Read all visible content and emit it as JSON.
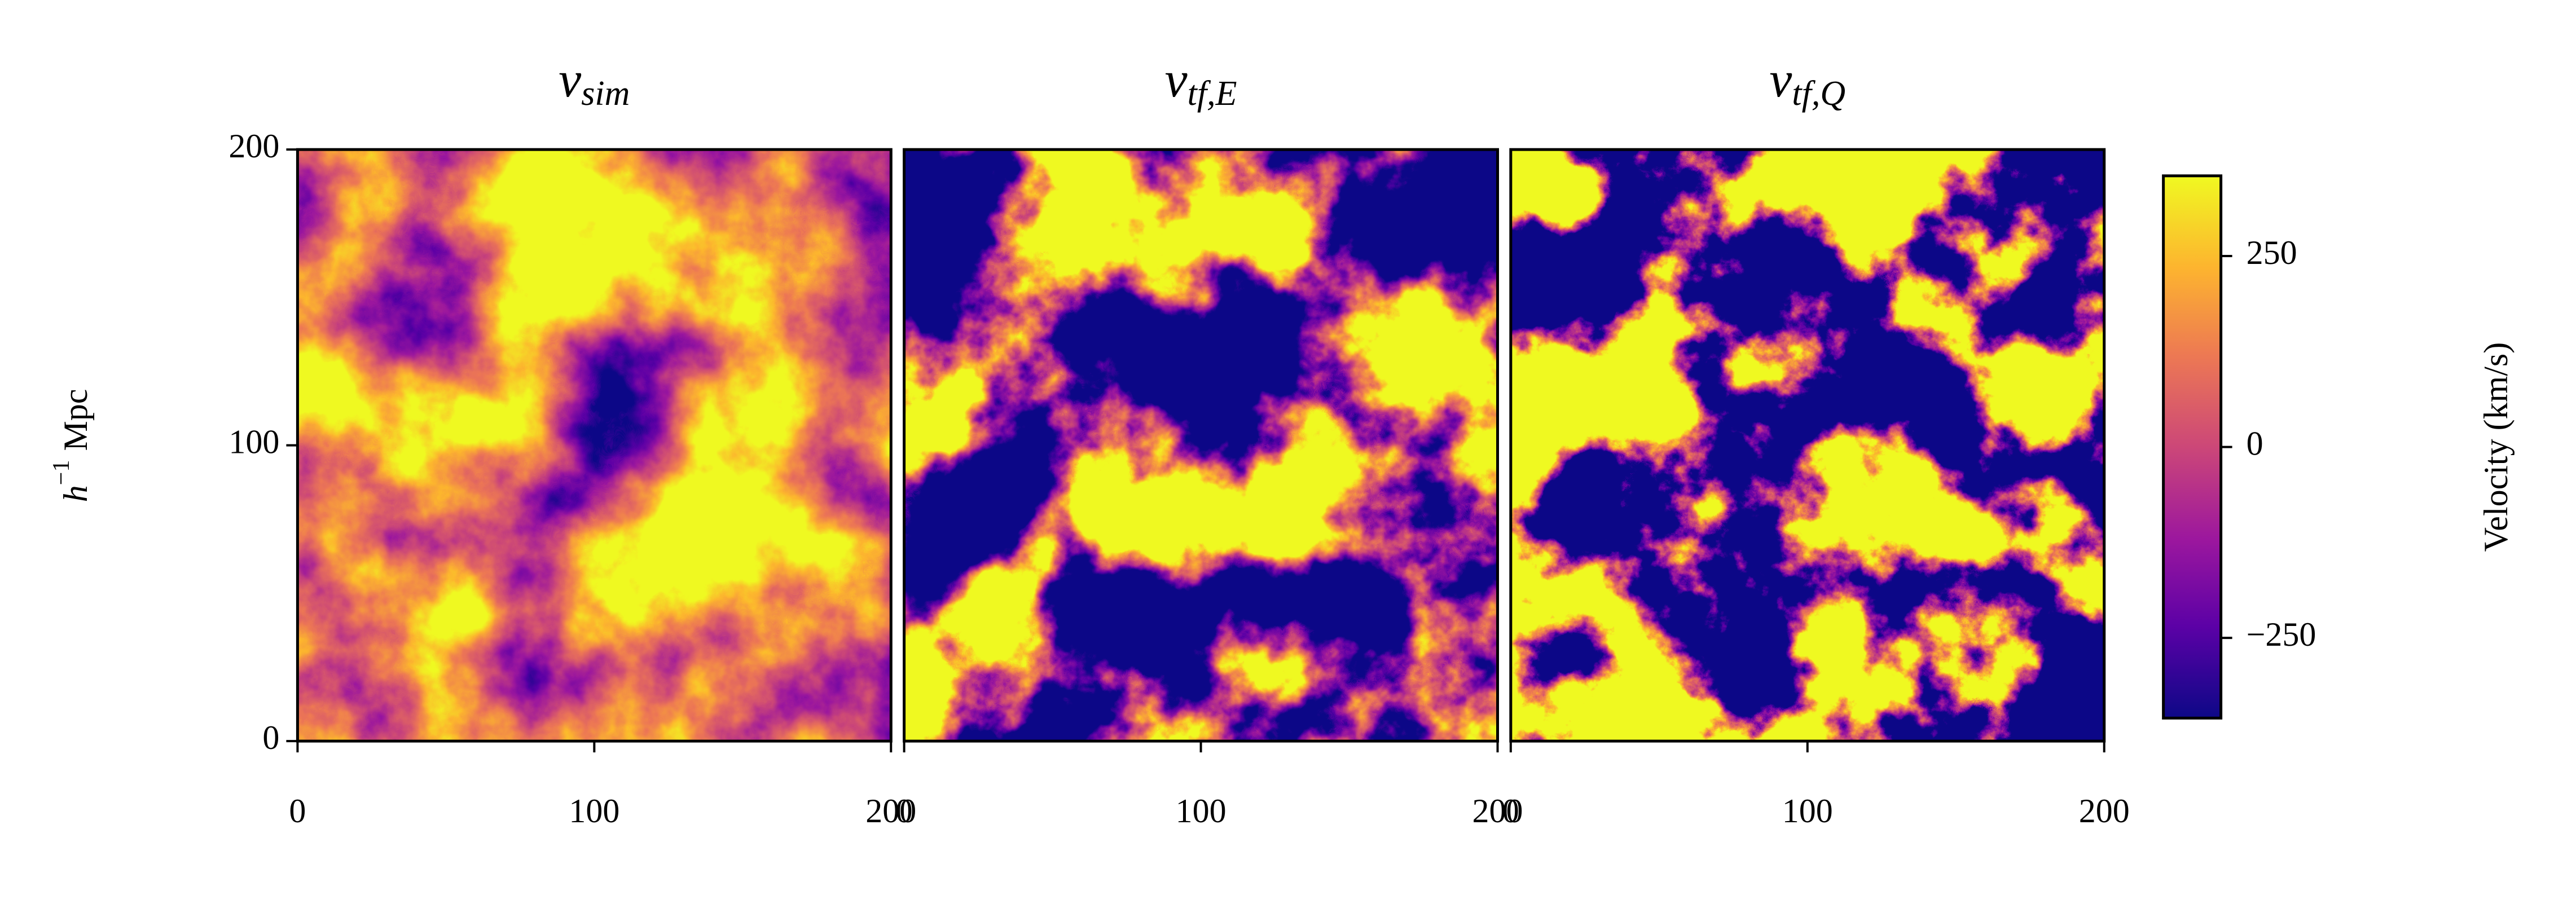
{
  "chart_data": {
    "type": "heatmap",
    "panels": [
      {
        "title": "v",
        "subscript": "sim"
      },
      {
        "title": "v",
        "subscript": "tf,E"
      },
      {
        "title": "v",
        "subscript": "tf,Q"
      }
    ],
    "ylabel": [
      "h",
      "−1",
      "Mpc"
    ],
    "xlim": [
      0,
      200
    ],
    "ylim": [
      0,
      200
    ],
    "xticks": [
      0,
      100,
      200
    ],
    "yticks": [
      0,
      100,
      200
    ],
    "colorbar": {
      "label": "Velocity (km/s)",
      "clim": [
        -355,
        355
      ],
      "ticks": [
        {
          "value": -250,
          "label": "−250"
        },
        0,
        250
      ],
      "colormap": "plasma"
    }
  }
}
